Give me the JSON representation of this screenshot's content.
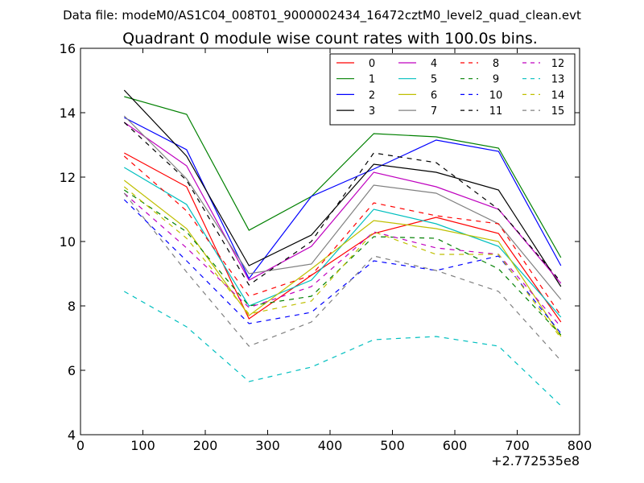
{
  "figure": {
    "suptitle": "Data file: modeM0/AS1C04_008T01_9000002434_16472cztM0_level2_quad_clean.evt"
  },
  "chart_data": {
    "type": "line",
    "title": "Quadrant 0 module wise count rates with 100.0s bins.",
    "xlabel": "",
    "ylabel": "",
    "x_offset_label": "+2.772535e8",
    "xlim": [
      0,
      800
    ],
    "ylim": [
      4,
      16
    ],
    "xticks": [
      0,
      100,
      200,
      300,
      400,
      500,
      600,
      700,
      800
    ],
    "yticks": [
      4,
      6,
      8,
      10,
      12,
      14,
      16
    ],
    "grid": false,
    "legend_position": "top-right",
    "legend_columns": 4,
    "x": [
      70,
      170,
      270,
      370,
      470,
      570,
      670,
      770
    ],
    "series": [
      {
        "name": "0",
        "color": "#ff0000",
        "dash": "solid",
        "values": [
          12.75,
          11.7,
          7.6,
          8.95,
          10.25,
          10.75,
          10.25,
          7.5
        ]
      },
      {
        "name": "1",
        "color": "#008000",
        "dash": "solid",
        "values": [
          14.5,
          13.95,
          10.35,
          11.4,
          13.35,
          13.25,
          12.9,
          9.5
        ]
      },
      {
        "name": "2",
        "color": "#0000ff",
        "dash": "solid",
        "values": [
          13.85,
          12.85,
          8.85,
          11.4,
          12.25,
          13.15,
          12.8,
          9.25
        ]
      },
      {
        "name": "3",
        "color": "#000000",
        "dash": "solid",
        "values": [
          14.7,
          12.65,
          9.25,
          10.2,
          12.4,
          12.15,
          11.6,
          8.6
        ]
      },
      {
        "name": "4",
        "color": "#bf00bf",
        "dash": "solid",
        "values": [
          13.7,
          12.35,
          8.8,
          9.85,
          12.15,
          11.7,
          11.0,
          8.7
        ]
      },
      {
        "name": "5",
        "color": "#00bfbf",
        "dash": "solid",
        "values": [
          12.3,
          11.15,
          8.0,
          8.8,
          11.0,
          10.55,
          9.85,
          7.65
        ]
      },
      {
        "name": "6",
        "color": "#bfbf00",
        "dash": "solid",
        "values": [
          11.9,
          10.4,
          7.7,
          9.15,
          10.65,
          10.4,
          10.0,
          7.05
        ]
      },
      {
        "name": "7",
        "color": "#808080",
        "dash": "solid",
        "values": [
          13.9,
          11.95,
          9.0,
          9.3,
          11.75,
          11.5,
          10.55,
          8.2
        ]
      },
      {
        "name": "8",
        "color": "#ff0000",
        "dash": "dashed",
        "values": [
          12.65,
          10.95,
          8.3,
          8.95,
          11.2,
          10.8,
          10.55,
          7.7
        ]
      },
      {
        "name": "9",
        "color": "#008000",
        "dash": "dashed",
        "values": [
          11.6,
          10.3,
          8.0,
          8.3,
          10.15,
          10.1,
          9.15,
          7.1
        ]
      },
      {
        "name": "10",
        "color": "#0000ff",
        "dash": "dashed",
        "values": [
          11.3,
          9.4,
          7.45,
          7.8,
          9.4,
          9.1,
          9.55,
          7.15
        ]
      },
      {
        "name": "11",
        "color": "#000000",
        "dash": "dashed",
        "values": [
          13.7,
          11.9,
          8.65,
          10.0,
          12.75,
          12.45,
          11.0,
          8.75
        ]
      },
      {
        "name": "12",
        "color": "#bf00bf",
        "dash": "dashed",
        "values": [
          11.5,
          9.8,
          7.95,
          8.6,
          10.3,
          9.8,
          9.6,
          7.35
        ]
      },
      {
        "name": "13",
        "color": "#00bfbf",
        "dash": "dashed",
        "values": [
          8.45,
          7.35,
          5.65,
          6.1,
          6.95,
          7.05,
          6.75,
          4.9
        ]
      },
      {
        "name": "14",
        "color": "#bfbf00",
        "dash": "dashed",
        "values": [
          11.7,
          10.1,
          7.75,
          8.15,
          10.3,
          9.6,
          9.6,
          7.0
        ]
      },
      {
        "name": "15",
        "color": "#808080",
        "dash": "dashed",
        "values": [
          11.5,
          9.05,
          6.75,
          7.5,
          9.55,
          9.1,
          8.45,
          6.3
        ]
      }
    ]
  }
}
